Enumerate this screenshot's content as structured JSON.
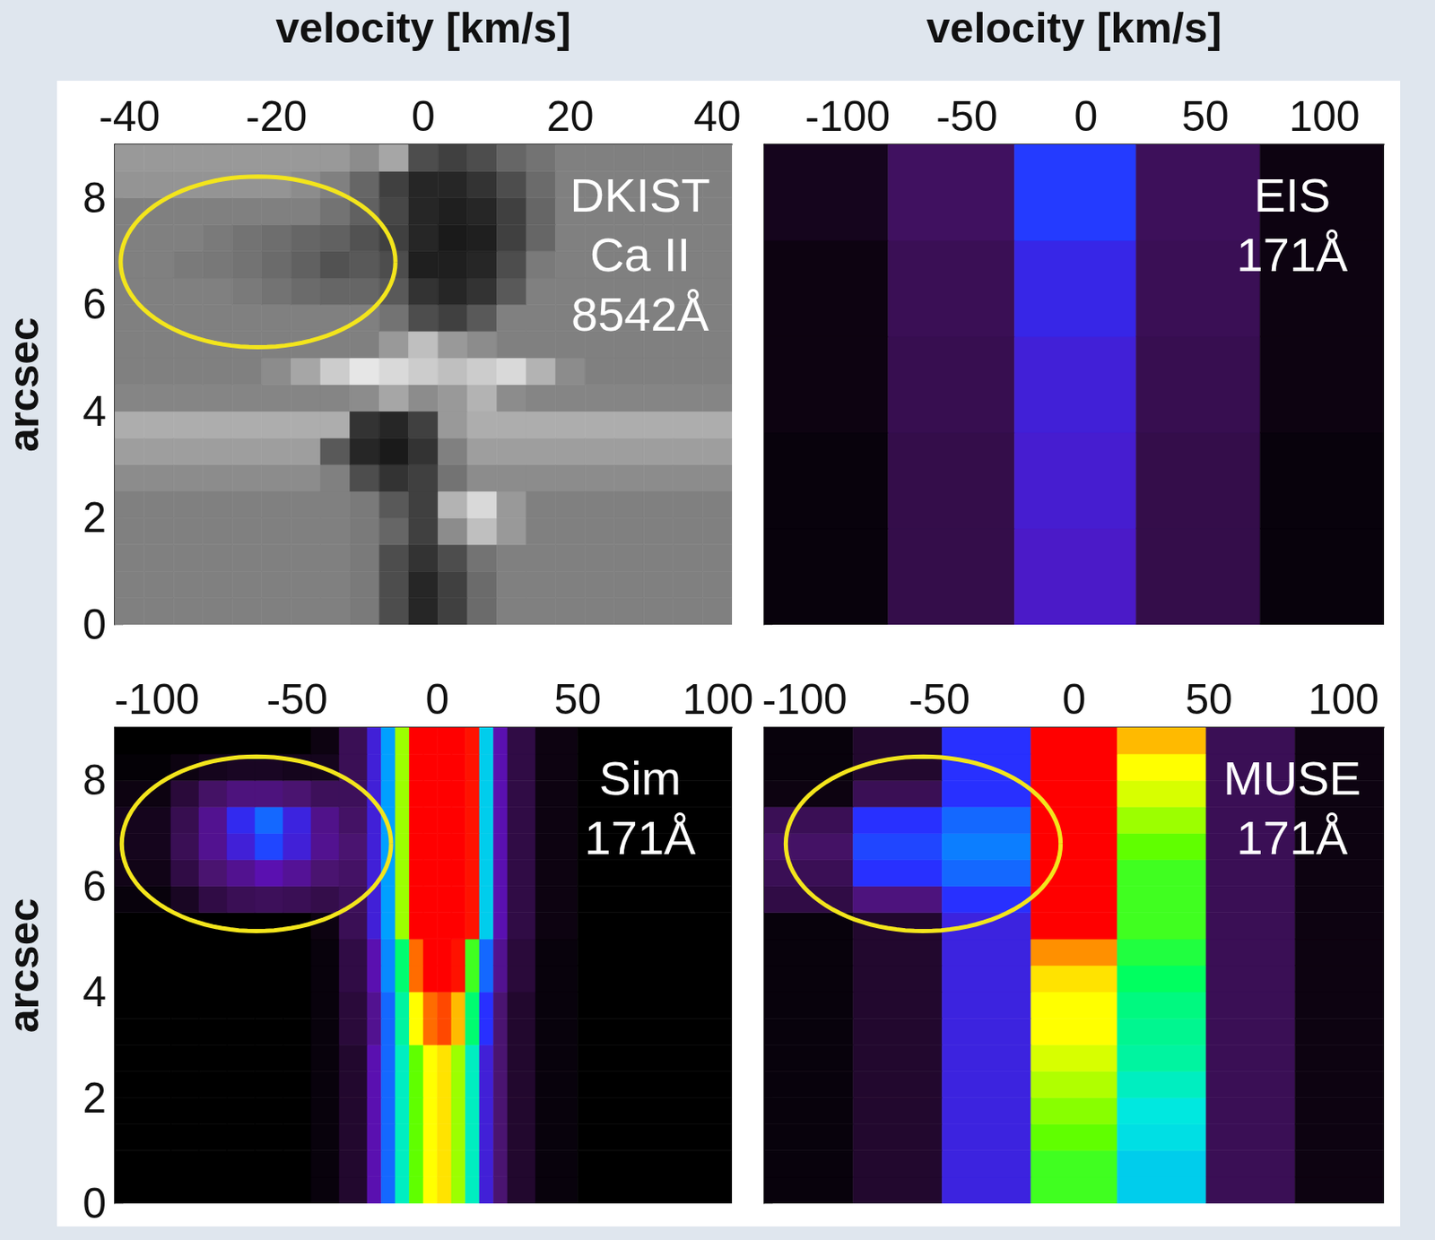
{
  "chart_data": [
    {
      "type": "heatmap",
      "title": "DKIST\nCa II\n8542Å",
      "xlabel": "velocity [km/s]",
      "ylabel": "arcsec",
      "xlim": [
        -42,
        42
      ],
      "xticks": [
        -40,
        -20,
        0,
        20,
        40
      ],
      "ylim": [
        0,
        9
      ],
      "yticks": [
        0,
        2,
        4,
        6,
        8
      ],
      "color": "gray",
      "value_range": [
        0,
        1
      ],
      "ellipse": {
        "center": [
          -22.5,
          6.8
        ],
        "radii": [
          18.7,
          1.6
        ]
      },
      "x_edges": [
        -42,
        -38,
        -34,
        -30,
        -26,
        -22,
        -18,
        -14,
        -10,
        -6,
        -2,
        2,
        6,
        10,
        14,
        18,
        22,
        26,
        30,
        34,
        38,
        42
      ],
      "y_edges": [
        0,
        0.5,
        1,
        1.5,
        2,
        2.5,
        3,
        3.5,
        4,
        4.5,
        5,
        5.5,
        6,
        6.5,
        7,
        7.5,
        8,
        8.5,
        9
      ],
      "cells": [
        [
          0.5,
          0.5,
          0.5,
          0.5,
          0.5,
          0.5,
          0.5,
          0.5,
          0.48,
          0.3,
          0.15,
          0.25,
          0.42,
          0.5,
          0.5,
          0.5,
          0.5,
          0.5,
          0.5,
          0.5,
          0.5
        ],
        [
          0.5,
          0.5,
          0.5,
          0.5,
          0.5,
          0.5,
          0.5,
          0.5,
          0.48,
          0.3,
          0.15,
          0.25,
          0.42,
          0.5,
          0.5,
          0.5,
          0.5,
          0.5,
          0.5,
          0.5,
          0.5
        ],
        [
          0.5,
          0.5,
          0.5,
          0.5,
          0.5,
          0.5,
          0.5,
          0.5,
          0.48,
          0.3,
          0.2,
          0.3,
          0.45,
          0.5,
          0.5,
          0.5,
          0.5,
          0.5,
          0.5,
          0.5,
          0.5
        ],
        [
          0.5,
          0.5,
          0.5,
          0.5,
          0.5,
          0.5,
          0.5,
          0.5,
          0.48,
          0.4,
          0.25,
          0.55,
          0.75,
          0.6,
          0.5,
          0.5,
          0.5,
          0.5,
          0.5,
          0.5,
          0.5
        ],
        [
          0.5,
          0.5,
          0.5,
          0.5,
          0.5,
          0.5,
          0.5,
          0.5,
          0.48,
          0.35,
          0.25,
          0.7,
          0.85,
          0.6,
          0.5,
          0.5,
          0.5,
          0.5,
          0.5,
          0.5,
          0.5
        ],
        [
          0.55,
          0.55,
          0.55,
          0.55,
          0.55,
          0.55,
          0.55,
          0.5,
          0.3,
          0.2,
          0.25,
          0.45,
          0.55,
          0.55,
          0.55,
          0.55,
          0.55,
          0.55,
          0.55,
          0.55,
          0.55
        ],
        [
          0.62,
          0.62,
          0.62,
          0.62,
          0.62,
          0.62,
          0.62,
          0.35,
          0.15,
          0.1,
          0.2,
          0.5,
          0.62,
          0.62,
          0.62,
          0.62,
          0.62,
          0.62,
          0.62,
          0.62,
          0.62
        ],
        [
          0.68,
          0.68,
          0.68,
          0.68,
          0.68,
          0.68,
          0.68,
          0.68,
          0.2,
          0.15,
          0.25,
          0.6,
          0.68,
          0.68,
          0.68,
          0.68,
          0.68,
          0.68,
          0.68,
          0.68,
          0.68
        ],
        [
          0.52,
          0.52,
          0.52,
          0.52,
          0.52,
          0.52,
          0.52,
          0.52,
          0.55,
          0.65,
          0.55,
          0.6,
          0.7,
          0.55,
          0.52,
          0.52,
          0.52,
          0.52,
          0.52,
          0.52,
          0.52
        ],
        [
          0.5,
          0.5,
          0.5,
          0.5,
          0.5,
          0.55,
          0.65,
          0.8,
          0.9,
          0.85,
          0.8,
          0.75,
          0.8,
          0.85,
          0.7,
          0.55,
          0.5,
          0.5,
          0.5,
          0.5,
          0.5
        ],
        [
          0.5,
          0.5,
          0.5,
          0.5,
          0.5,
          0.5,
          0.5,
          0.5,
          0.5,
          0.6,
          0.75,
          0.6,
          0.55,
          0.5,
          0.5,
          0.5,
          0.5,
          0.5,
          0.5,
          0.5,
          0.5
        ],
        [
          0.5,
          0.5,
          0.5,
          0.5,
          0.5,
          0.5,
          0.5,
          0.5,
          0.5,
          0.45,
          0.3,
          0.25,
          0.35,
          0.5,
          0.5,
          0.5,
          0.5,
          0.5,
          0.5,
          0.5,
          0.5
        ],
        [
          0.5,
          0.5,
          0.5,
          0.5,
          0.48,
          0.45,
          0.42,
          0.4,
          0.4,
          0.35,
          0.2,
          0.15,
          0.2,
          0.35,
          0.5,
          0.5,
          0.5,
          0.5,
          0.5,
          0.5,
          0.5
        ],
        [
          0.5,
          0.5,
          0.48,
          0.47,
          0.45,
          0.42,
          0.38,
          0.32,
          0.35,
          0.3,
          0.12,
          0.12,
          0.15,
          0.3,
          0.48,
          0.5,
          0.5,
          0.5,
          0.5,
          0.5,
          0.5
        ],
        [
          0.5,
          0.5,
          0.5,
          0.48,
          0.45,
          0.43,
          0.4,
          0.38,
          0.32,
          0.25,
          0.15,
          0.1,
          0.12,
          0.25,
          0.4,
          0.5,
          0.5,
          0.5,
          0.5,
          0.5,
          0.5
        ],
        [
          0.5,
          0.5,
          0.5,
          0.5,
          0.5,
          0.5,
          0.5,
          0.45,
          0.38,
          0.28,
          0.15,
          0.12,
          0.15,
          0.25,
          0.4,
          0.5,
          0.5,
          0.5,
          0.5,
          0.5,
          0.5
        ],
        [
          0.58,
          0.58,
          0.58,
          0.58,
          0.58,
          0.58,
          0.55,
          0.5,
          0.4,
          0.25,
          0.15,
          0.15,
          0.2,
          0.3,
          0.42,
          0.5,
          0.5,
          0.5,
          0.5,
          0.5,
          0.5
        ],
        [
          0.6,
          0.6,
          0.6,
          0.6,
          0.6,
          0.6,
          0.6,
          0.6,
          0.55,
          0.65,
          0.3,
          0.25,
          0.3,
          0.4,
          0.45,
          0.5,
          0.5,
          0.5,
          0.5,
          0.5,
          0.5
        ]
      ]
    },
    {
      "type": "heatmap",
      "title": "EIS\n171Å",
      "xlabel": "velocity [km/s]",
      "tick_labels": "x",
      "xlim": [
        -135,
        125
      ],
      "xticks": [
        -100,
        -50,
        0,
        50,
        100
      ],
      "ylim": [
        0,
        9
      ],
      "yticks": [
        0,
        2,
        4,
        6,
        8
      ],
      "color": "rainbow",
      "value_range": [
        0,
        1
      ],
      "x_edges": [
        -135,
        -83,
        -30,
        21,
        73,
        125
      ],
      "y_edges": [
        0,
        1.8,
        3.6,
        5.4,
        7.2,
        9
      ],
      "cells": [
        [
          0.02,
          0.13,
          0.33,
          0.13,
          0.02
        ],
        [
          0.02,
          0.13,
          0.34,
          0.13,
          0.02
        ],
        [
          0.03,
          0.14,
          0.35,
          0.14,
          0.03
        ],
        [
          0.03,
          0.15,
          0.37,
          0.15,
          0.03
        ],
        [
          0.05,
          0.17,
          0.41,
          0.16,
          0.03
        ]
      ]
    },
    {
      "type": "heatmap",
      "title": "Sim\n171Å",
      "ylabel": "arcsec",
      "xlim": [
        -115,
        105
      ],
      "xticks": [
        -100,
        -50,
        0,
        50,
        100
      ],
      "ylim": [
        0,
        9
      ],
      "yticks": [
        0,
        2,
        4,
        6,
        8
      ],
      "color": "rainbow",
      "value_range": [
        0,
        1
      ],
      "ellipse": {
        "center": [
          -64.5,
          6.8
        ],
        "radii": [
          48,
          1.65
        ]
      },
      "x_edges": [
        -115,
        -95,
        -85,
        -75,
        -65,
        -55,
        -45,
        -35,
        -25,
        -20,
        -15,
        -10,
        -5,
        0,
        5,
        10,
        15,
        20,
        25,
        35,
        50,
        105
      ],
      "y_edges": [
        0,
        0.5,
        1,
        1.5,
        2,
        2.5,
        3,
        3.5,
        4,
        4.5,
        5,
        5.5,
        6,
        6.5,
        7,
        7.5,
        8,
        8.5,
        9
      ],
      "cells": [
        [
          0,
          0,
          0,
          0,
          0,
          0,
          0.02,
          0.08,
          0.3,
          0.45,
          0.6,
          0.72,
          0.8,
          0.82,
          0.75,
          0.6,
          0.35,
          0.2,
          0.08,
          0.02,
          0
        ],
        [
          0,
          0,
          0,
          0,
          0,
          0,
          0.02,
          0.08,
          0.3,
          0.45,
          0.6,
          0.72,
          0.8,
          0.82,
          0.75,
          0.6,
          0.35,
          0.2,
          0.08,
          0.02,
          0
        ],
        [
          0,
          0,
          0,
          0,
          0,
          0,
          0.02,
          0.08,
          0.3,
          0.45,
          0.6,
          0.72,
          0.8,
          0.82,
          0.75,
          0.6,
          0.35,
          0.2,
          0.08,
          0.02,
          0
        ],
        [
          0,
          0,
          0,
          0,
          0,
          0,
          0.02,
          0.08,
          0.3,
          0.45,
          0.6,
          0.72,
          0.8,
          0.82,
          0.75,
          0.6,
          0.35,
          0.2,
          0.08,
          0.02,
          0
        ],
        [
          0,
          0,
          0,
          0,
          0,
          0,
          0.02,
          0.08,
          0.3,
          0.45,
          0.6,
          0.72,
          0.8,
          0.82,
          0.75,
          0.6,
          0.35,
          0.2,
          0.08,
          0.02,
          0
        ],
        [
          0,
          0,
          0,
          0,
          0,
          0,
          0.02,
          0.08,
          0.3,
          0.45,
          0.6,
          0.72,
          0.8,
          0.82,
          0.75,
          0.6,
          0.35,
          0.2,
          0.08,
          0.02,
          0
        ],
        [
          0,
          0,
          0,
          0,
          0,
          0,
          0.02,
          0.1,
          0.25,
          0.45,
          0.62,
          0.8,
          0.9,
          0.92,
          0.85,
          0.65,
          0.4,
          0.2,
          0.08,
          0.02,
          0
        ],
        [
          0,
          0,
          0,
          0,
          0,
          0,
          0.02,
          0.1,
          0.25,
          0.45,
          0.62,
          0.8,
          0.9,
          0.92,
          0.85,
          0.65,
          0.4,
          0.2,
          0.08,
          0.02,
          0
        ],
        [
          0,
          0,
          0,
          0,
          0,
          0,
          0.02,
          0.12,
          0.3,
          0.48,
          0.65,
          0.9,
          1,
          1,
          0.95,
          0.7,
          0.45,
          0.25,
          0.1,
          0.02,
          0
        ],
        [
          0,
          0,
          0,
          0,
          0,
          0,
          0.02,
          0.12,
          0.3,
          0.48,
          0.65,
          0.9,
          1,
          1,
          0.95,
          0.7,
          0.45,
          0.25,
          0.1,
          0.02,
          0
        ],
        [
          0,
          0,
          0,
          0,
          0,
          0,
          0.03,
          0.15,
          0.35,
          0.5,
          0.75,
          1,
          1,
          1,
          1,
          0.95,
          0.55,
          0.3,
          0.12,
          0.03,
          0
        ],
        [
          0.02,
          0.06,
          0.12,
          0.15,
          0.16,
          0.15,
          0.13,
          0.16,
          0.35,
          0.5,
          0.75,
          1,
          1,
          1,
          1,
          0.95,
          0.55,
          0.3,
          0.12,
          0.03,
          0
        ],
        [
          0.04,
          0.12,
          0.2,
          0.25,
          0.3,
          0.26,
          0.2,
          0.18,
          0.35,
          0.5,
          0.75,
          1,
          1,
          1,
          1,
          0.95,
          0.55,
          0.3,
          0.12,
          0.03,
          0
        ],
        [
          0.05,
          0.15,
          0.25,
          0.35,
          0.42,
          0.35,
          0.25,
          0.2,
          0.35,
          0.5,
          0.75,
          1,
          1,
          1,
          1,
          0.95,
          0.55,
          0.3,
          0.12,
          0.03,
          0
        ],
        [
          0.05,
          0.14,
          0.25,
          0.38,
          0.45,
          0.36,
          0.24,
          0.18,
          0.35,
          0.5,
          0.75,
          1,
          1,
          1,
          1,
          0.95,
          0.55,
          0.3,
          0.12,
          0.03,
          0
        ],
        [
          0.03,
          0.1,
          0.18,
          0.22,
          0.22,
          0.2,
          0.16,
          0.16,
          0.35,
          0.5,
          0.75,
          1,
          1,
          1,
          1,
          0.95,
          0.55,
          0.3,
          0.12,
          0.03,
          0
        ],
        [
          0.01,
          0.03,
          0.05,
          0.06,
          0.06,
          0.05,
          0.05,
          0.15,
          0.35,
          0.5,
          0.75,
          1,
          1,
          1,
          1,
          0.95,
          0.55,
          0.3,
          0.12,
          0.03,
          0
        ],
        [
          0,
          0,
          0,
          0,
          0,
          0,
          0.03,
          0.15,
          0.35,
          0.5,
          0.75,
          1,
          1,
          1,
          1,
          0.95,
          0.55,
          0.3,
          0.12,
          0.03,
          0
        ]
      ]
    },
    {
      "type": "heatmap",
      "title": "MUSE\n171Å",
      "tick_labels": "x",
      "xlim": [
        -115,
        115
      ],
      "xticks": [
        -100,
        -50,
        0,
        50,
        100
      ],
      "ylim": [
        0,
        9
      ],
      "yticks": [
        0,
        2,
        4,
        6,
        8
      ],
      "color": "rainbow",
      "value_range": [
        0,
        1
      ],
      "ellipse": {
        "center": [
          -56,
          6.8
        ],
        "radii": [
          51,
          1.65
        ]
      },
      "x_edges": [
        -115,
        -82,
        -49,
        -16,
        16,
        49,
        82,
        115
      ],
      "y_edges": [
        0,
        0.5,
        1,
        1.5,
        2,
        2.5,
        3,
        3.5,
        4,
        4.5,
        5,
        5.5,
        6,
        6.5,
        7,
        7.5,
        8,
        8.5,
        9
      ],
      "cells": [
        [
          0.02,
          0.08,
          0.36,
          0.7,
          0.55,
          0.15,
          0.03
        ],
        [
          0.02,
          0.08,
          0.36,
          0.7,
          0.55,
          0.15,
          0.03
        ],
        [
          0.02,
          0.08,
          0.36,
          0.72,
          0.57,
          0.15,
          0.03
        ],
        [
          0.02,
          0.08,
          0.36,
          0.74,
          0.58,
          0.15,
          0.03
        ],
        [
          0.02,
          0.08,
          0.36,
          0.76,
          0.6,
          0.15,
          0.03
        ],
        [
          0.02,
          0.08,
          0.36,
          0.78,
          0.62,
          0.15,
          0.03
        ],
        [
          0.02,
          0.08,
          0.36,
          0.8,
          0.63,
          0.15,
          0.03
        ],
        [
          0.02,
          0.08,
          0.36,
          0.8,
          0.64,
          0.15,
          0.03
        ],
        [
          0.02,
          0.08,
          0.36,
          0.82,
          0.66,
          0.15,
          0.03
        ],
        [
          0.02,
          0.08,
          0.36,
          0.88,
          0.68,
          0.15,
          0.03
        ],
        [
          0.02,
          0.08,
          0.36,
          0.97,
          0.7,
          0.15,
          0.03
        ],
        [
          0.12,
          0.22,
          0.4,
          1,
          0.7,
          0.15,
          0.03
        ],
        [
          0.15,
          0.4,
          0.45,
          1,
          0.7,
          0.15,
          0.03
        ],
        [
          0.18,
          0.42,
          0.47,
          1,
          0.72,
          0.15,
          0.03
        ],
        [
          0.15,
          0.4,
          0.45,
          1,
          0.75,
          0.15,
          0.03
        ],
        [
          0.03,
          0.15,
          0.4,
          1,
          0.78,
          0.15,
          0.03
        ],
        [
          0.02,
          0.08,
          0.4,
          1,
          0.8,
          0.15,
          0.03
        ],
        [
          0.02,
          0.08,
          0.4,
          1,
          0.85,
          0.15,
          0.03
        ]
      ]
    }
  ]
}
